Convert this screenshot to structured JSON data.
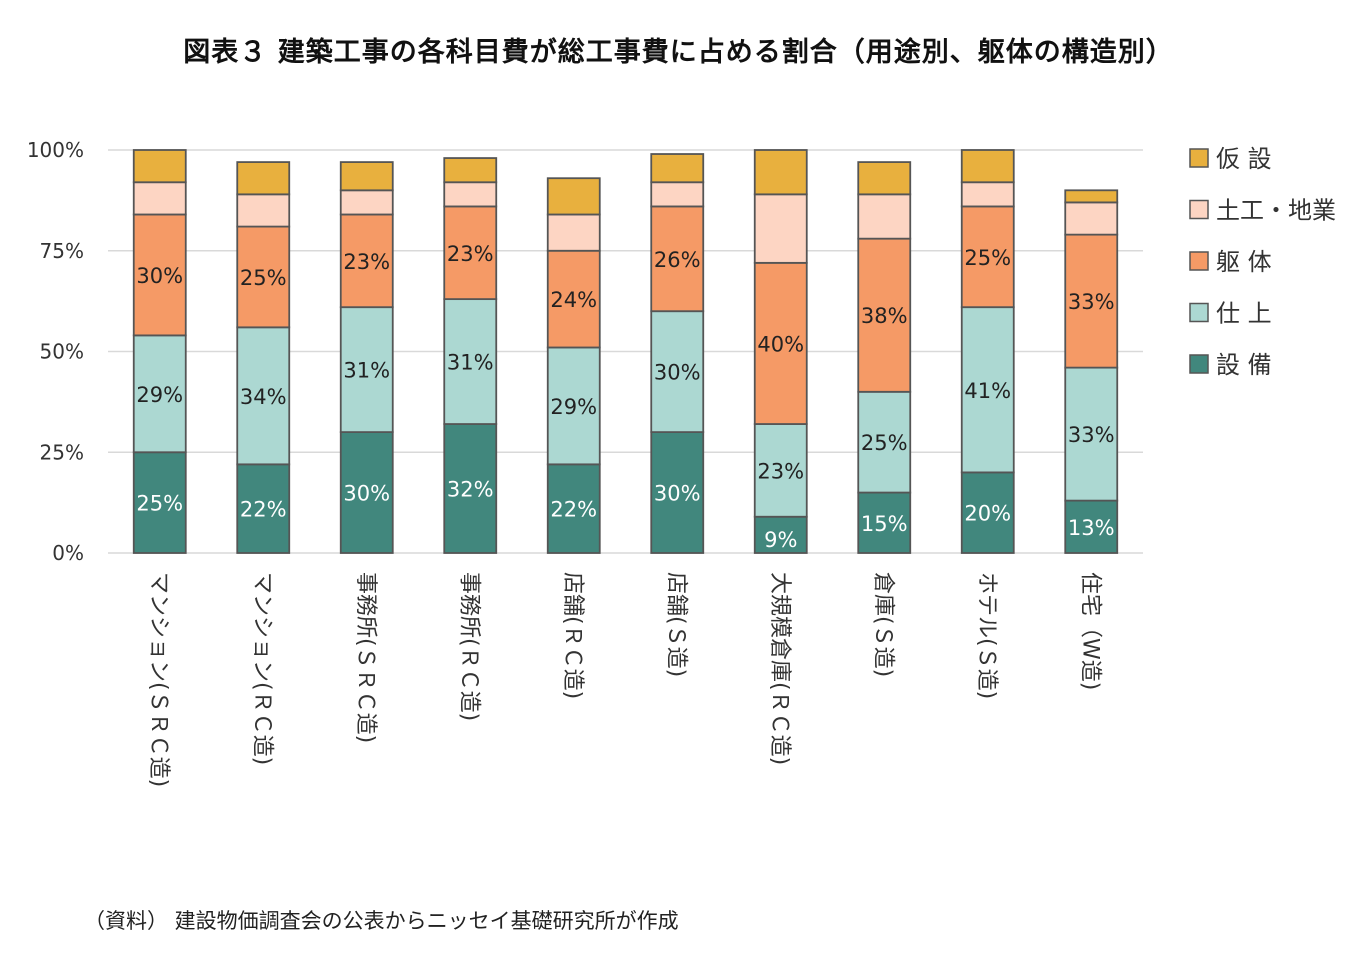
{
  "title": "図表３ 建築工事の各科目費が総工事費に占める割合（用途別、躯体の構造別）",
  "source": "（資料） 建設物価調査会の公表からニッセイ基礎研究所が作成",
  "colors": {
    "setsubi": "#41877d",
    "shiage": "#acd8d2",
    "kutai": "#f59a66",
    "dokou": "#fdd5c3",
    "kasetsu": "#e8b03e",
    "grid": "#d9d9d9",
    "outline": "#555555"
  },
  "chart_data": {
    "type": "bar",
    "stacked": true,
    "title": "図表３ 建築工事の各科目費が総工事費に占める割合（用途別、躯体の構造別）",
    "xlabel": "",
    "ylabel": "",
    "ylim": [
      0,
      100
    ],
    "yticks": [
      "0%",
      "25%",
      "50%",
      "75%",
      "100%"
    ],
    "grid": true,
    "legend_position": "right",
    "categories": [
      "マンション(ＳＲＣ造)",
      "マンション(ＲＣ造)",
      "事務所(ＳＲＣ造)",
      "事務所(ＲＣ造)",
      "店舗(ＲＣ造)",
      "店舗(Ｓ造)",
      "大規模倉庫(ＲＣ造)",
      "倉庫(Ｓ造)",
      "ホテル(Ｓ造)",
      "住宅（W造)"
    ],
    "series": [
      {
        "name": "設 備",
        "color_key": "setsubi",
        "values": [
          25,
          22,
          30,
          32,
          22,
          30,
          9,
          15,
          20,
          13
        ],
        "labels": [
          "25%",
          "22%",
          "30%",
          "32%",
          "22%",
          "30%",
          "9%",
          "15%",
          "20%",
          "13%"
        ]
      },
      {
        "name": "仕 上",
        "color_key": "shiage",
        "values": [
          29,
          34,
          31,
          31,
          29,
          30,
          23,
          25,
          41,
          33
        ],
        "labels": [
          "29%",
          "34%",
          "31%",
          "31%",
          "29%",
          "30%",
          "23%",
          "25%",
          "41%",
          "33%"
        ]
      },
      {
        "name": "躯 体",
        "color_key": "kutai",
        "values": [
          30,
          25,
          23,
          23,
          24,
          26,
          40,
          38,
          25,
          33
        ],
        "labels": [
          "30%",
          "25%",
          "23%",
          "23%",
          "24%",
          "26%",
          "40%",
          "38%",
          "25%",
          "33%"
        ]
      },
      {
        "name": "土工・地業",
        "color_key": "dokou",
        "values": [
          8,
          8,
          6,
          6,
          9,
          6,
          17,
          11,
          6,
          8
        ],
        "labels": []
      },
      {
        "name": "仮 設",
        "color_key": "kasetsu",
        "values": [
          8,
          8,
          7,
          6,
          9,
          7,
          11,
          8,
          8,
          3
        ],
        "labels": []
      }
    ],
    "legend_order": [
      "仮 設",
      "土工・地業",
      "躯 体",
      "仕 上",
      "設 備"
    ]
  }
}
